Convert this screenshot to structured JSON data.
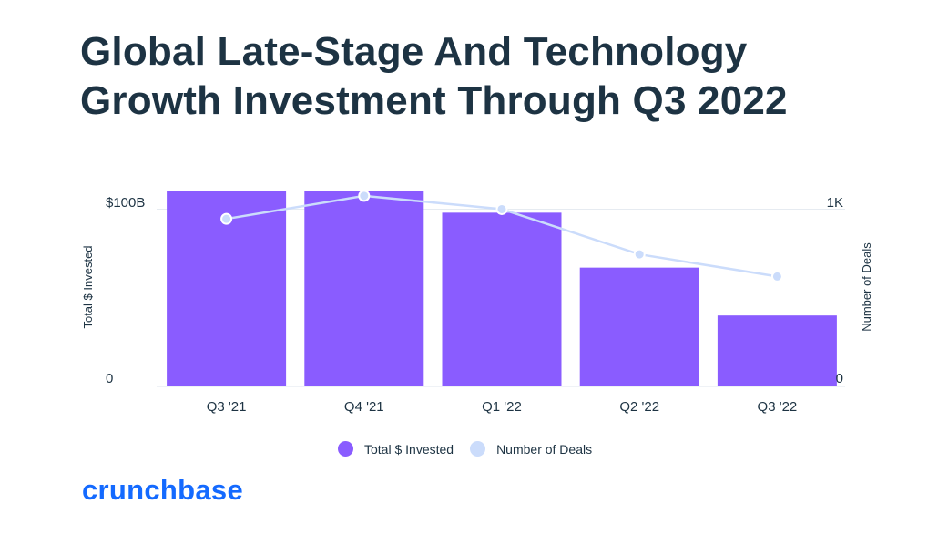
{
  "chart_data": {
    "type": "bar",
    "title": "Global Late-Stage And Technology Growth Investment Through Q3 2022",
    "categories": [
      "Q3 '21",
      "Q4 '21",
      "Q1 '22",
      "Q2 '22",
      "Q3 '22"
    ],
    "series": [
      {
        "name": "Total $ Invested",
        "type": "bar",
        "axis": "left",
        "color": "#8a5cff",
        "values": [
          110,
          110,
          98,
          67,
          40
        ]
      },
      {
        "name": "Number of Deals",
        "type": "line",
        "axis": "right",
        "color": "#cbdcfb",
        "values": [
          945,
          1075,
          1000,
          745,
          620
        ]
      }
    ],
    "y_left": {
      "label": "Total $ Invested",
      "ticks": [
        {
          "value": 0,
          "label": "0"
        },
        {
          "value": 100,
          "label": "$100B"
        }
      ],
      "range": [
        0,
        110
      ]
    },
    "y_right": {
      "label": "Number of Deals",
      "ticks": [
        {
          "value": 0,
          "label": "0"
        },
        {
          "value": 1000,
          "label": "1K"
        }
      ],
      "range": [
        0,
        1100
      ]
    },
    "legend_position": "bottom-center",
    "grid": true
  },
  "branding": {
    "logo_text": "crunchbase",
    "logo_color": "#146aff"
  }
}
